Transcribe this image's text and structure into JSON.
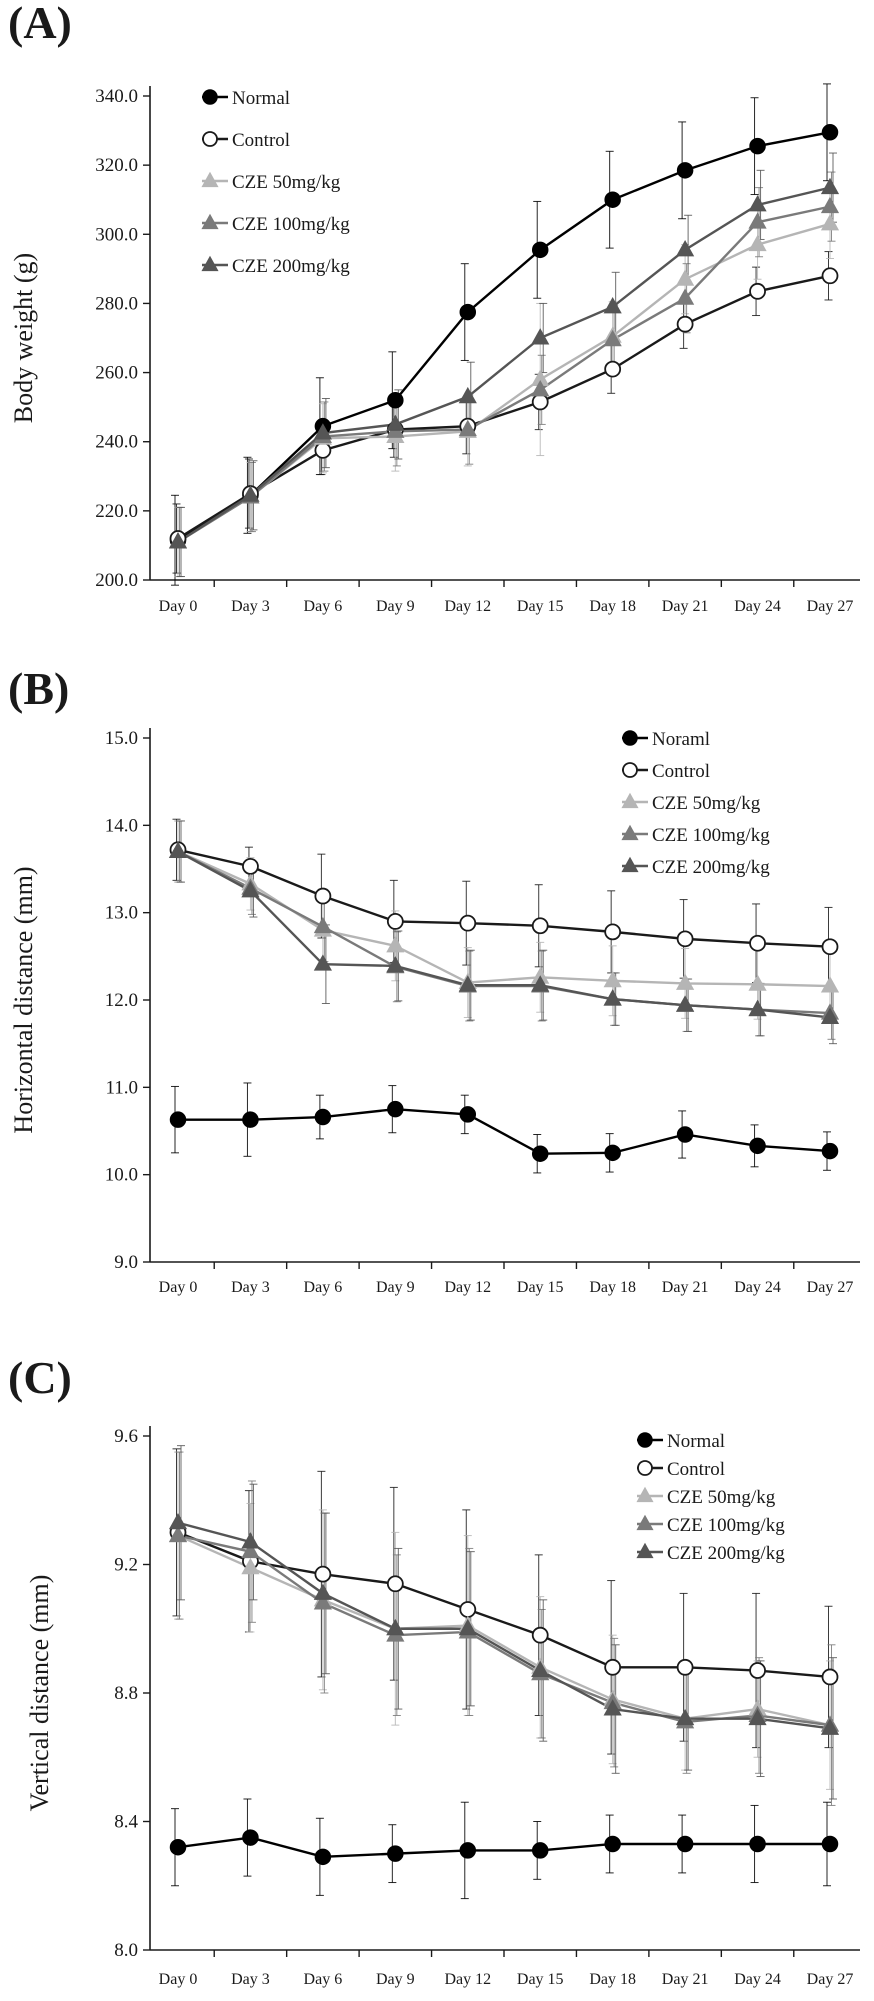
{
  "colors": {
    "Normal": "#000000",
    "Control": "#1a1a1a",
    "CZE 50mg/kg": "#b5b5b5",
    "CZE 100mg/kg": "#7a7a7a",
    "CZE 200mg/kg": "#555555",
    "axis": "#1a1a1a"
  },
  "chart_data": [
    {
      "panel": "(A)",
      "type": "line",
      "ylabel": "Body weight (g)",
      "xlabel": "",
      "categories": [
        "Day 0",
        "Day 3",
        "Day 6",
        "Day 9",
        "Day 12",
        "Day 15",
        "Day 18",
        "Day 21",
        "Day 24",
        "Day 27"
      ],
      "ylim": [
        200,
        340
      ],
      "yticks": [
        "200.0",
        "220.0",
        "240.0",
        "260.0",
        "280.0",
        "300.0",
        "320.0",
        "340.0"
      ],
      "legend_position": "top-left",
      "series": [
        {
          "name": "Normal",
          "marker": "filled-circle",
          "values": [
            211.5,
            224.5,
            244.5,
            252.0,
            277.5,
            295.5,
            310.0,
            318.5,
            325.5,
            329.5
          ],
          "errors": [
            13,
            11,
            14,
            14,
            14,
            14,
            14,
            14,
            14,
            14
          ]
        },
        {
          "name": "Control",
          "marker": "open-circle",
          "values": [
            212.0,
            225.0,
            237.5,
            243.5,
            244.5,
            251.5,
            261.0,
            274.0,
            283.5,
            288.0
          ],
          "errors": [
            10,
            10,
            7,
            8,
            8,
            8,
            7,
            7,
            7,
            7
          ]
        },
        {
          "name": "CZE 50mg/kg",
          "marker": "triangle",
          "values": [
            211.0,
            224.0,
            241.0,
            241.5,
            243.0,
            258.0,
            270.5,
            287.0,
            297.0,
            303.0
          ],
          "errors": [
            10,
            10,
            10,
            10,
            10,
            22,
            10,
            10,
            10,
            10
          ]
        },
        {
          "name": "CZE 100mg/kg",
          "marker": "triangle",
          "values": [
            211.0,
            224.0,
            241.5,
            243.0,
            243.5,
            255.0,
            269.5,
            281.5,
            303.5,
            308.0
          ],
          "errors": [
            10,
            10,
            10,
            10,
            10,
            10,
            10,
            10,
            10,
            10
          ]
        },
        {
          "name": "CZE 200mg/kg",
          "marker": "triangle",
          "values": [
            211.0,
            224.5,
            242.5,
            245.0,
            253.0,
            270.0,
            279.0,
            295.5,
            308.5,
            313.5
          ],
          "errors": [
            10,
            10,
            10,
            10,
            10,
            10,
            10,
            10,
            10,
            10
          ]
        }
      ]
    },
    {
      "panel": "(B)",
      "type": "line",
      "ylabel": "Horizontal distance (mm)",
      "xlabel": "",
      "categories": [
        "Day 0",
        "Day 3",
        "Day 6",
        "Day 9",
        "Day 12",
        "Day 15",
        "Day 18",
        "Day 21",
        "Day 24",
        "Day 27"
      ],
      "ylim": [
        9,
        15
      ],
      "yticks": [
        "9.0",
        "10.0",
        "11.0",
        "12.0",
        "13.0",
        "14.0",
        "15.0"
      ],
      "legend_position": "top-right",
      "series": [
        {
          "name": "Noraml",
          "color_key": "Normal",
          "marker": "filled-circle",
          "values": [
            10.63,
            10.63,
            10.66,
            10.75,
            10.69,
            10.24,
            10.25,
            10.46,
            10.33,
            10.27
          ],
          "errors": [
            0.38,
            0.42,
            0.25,
            0.27,
            0.22,
            0.22,
            0.22,
            0.27,
            0.24,
            0.22
          ]
        },
        {
          "name": "Control",
          "marker": "open-circle",
          "values": [
            13.72,
            13.53,
            13.19,
            12.9,
            12.88,
            12.85,
            12.78,
            12.7,
            12.65,
            12.61
          ],
          "errors": [
            0.35,
            0.22,
            0.48,
            0.47,
            0.48,
            0.47,
            0.47,
            0.45,
            0.45,
            0.45
          ]
        },
        {
          "name": "CZE 50mg/kg",
          "marker": "triangle",
          "values": [
            13.7,
            13.33,
            12.8,
            12.62,
            12.2,
            12.26,
            12.22,
            12.19,
            12.18,
            12.16
          ],
          "errors": [
            0.35,
            0.3,
            0.4,
            0.4,
            0.4,
            0.4,
            0.4,
            0.4,
            0.4,
            0.4
          ]
        },
        {
          "name": "CZE 100mg/kg",
          "marker": "triangle",
          "values": [
            13.7,
            13.28,
            12.84,
            12.38,
            12.16,
            12.16,
            12.01,
            11.94,
            11.89,
            11.85
          ],
          "errors": [
            0.35,
            0.3,
            0.4,
            0.4,
            0.4,
            0.4,
            0.3,
            0.3,
            0.3,
            0.3
          ]
        },
        {
          "name": "CZE 200mg/kg",
          "marker": "triangle",
          "values": [
            13.7,
            13.25,
            12.41,
            12.39,
            12.17,
            12.17,
            12.01,
            11.94,
            11.89,
            11.8
          ],
          "errors": [
            0.35,
            0.3,
            0.45,
            0.4,
            0.4,
            0.4,
            0.3,
            0.3,
            0.3,
            0.3
          ]
        }
      ]
    },
    {
      "panel": "(C)",
      "type": "line",
      "ylabel": "Vertical distance (mm)",
      "xlabel": "",
      "categories": [
        "Day 0",
        "Day 3",
        "Day 6",
        "Day 9",
        "Day 12",
        "Day 15",
        "Day 18",
        "Day 21",
        "Day 24",
        "Day 27"
      ],
      "ylim": [
        8.0,
        9.6
      ],
      "yticks": [
        "8.0",
        "8.4",
        "8.8",
        "9.2",
        "9.6"
      ],
      "legend_position": "top-right",
      "series": [
        {
          "name": "Normal",
          "marker": "filled-circle",
          "values": [
            8.32,
            8.35,
            8.29,
            8.3,
            8.31,
            8.31,
            8.33,
            8.33,
            8.33,
            8.33
          ],
          "errors": [
            0.12,
            0.12,
            0.12,
            0.09,
            0.15,
            0.09,
            0.09,
            0.09,
            0.12,
            0.13
          ]
        },
        {
          "name": "Control",
          "marker": "open-circle",
          "values": [
            9.3,
            9.21,
            9.17,
            9.14,
            9.06,
            8.98,
            8.88,
            8.88,
            8.87,
            8.85
          ],
          "errors": [
            0.26,
            0.22,
            0.32,
            0.3,
            0.31,
            0.25,
            0.27,
            0.23,
            0.24,
            0.22
          ]
        },
        {
          "name": "CZE 50mg/kg",
          "marker": "triangle",
          "values": [
            9.29,
            9.19,
            9.09,
            9.0,
            9.01,
            8.88,
            8.78,
            8.72,
            8.75,
            8.7
          ],
          "errors": [
            0.26,
            0.2,
            0.28,
            0.3,
            0.28,
            0.22,
            0.2,
            0.16,
            0.15,
            0.2
          ]
        },
        {
          "name": "CZE 100mg/kg",
          "marker": "triangle",
          "values": [
            9.29,
            9.24,
            9.08,
            8.98,
            8.99,
            8.86,
            8.77,
            8.71,
            8.73,
            8.7
          ],
          "errors": [
            0.26,
            0.22,
            0.28,
            0.25,
            0.26,
            0.2,
            0.2,
            0.16,
            0.18,
            0.25
          ]
        },
        {
          "name": "CZE 200mg/kg",
          "marker": "triangle",
          "values": [
            9.33,
            9.27,
            9.11,
            9.0,
            9.0,
            8.87,
            8.75,
            8.72,
            8.72,
            8.69
          ],
          "errors": [
            0.24,
            0.18,
            0.25,
            0.25,
            0.24,
            0.22,
            0.2,
            0.16,
            0.18,
            0.22
          ]
        }
      ]
    }
  ]
}
